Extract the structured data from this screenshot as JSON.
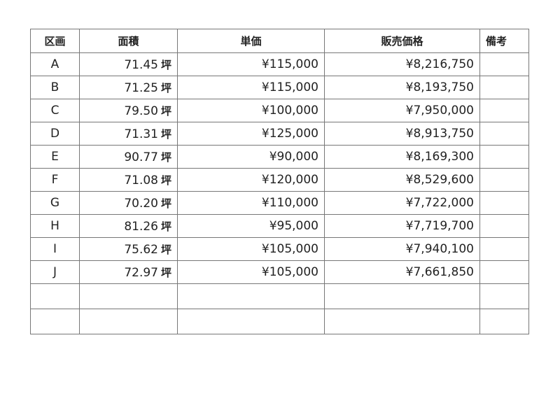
{
  "table": {
    "headers": [
      "区画",
      "面積",
      "単価",
      "販売価格",
      "備考"
    ],
    "area_unit": "坪",
    "rows": [
      {
        "lot": "A",
        "area": "71.45",
        "unit_price": "¥115,000",
        "sale_price": "¥8,216,750",
        "note": ""
      },
      {
        "lot": "B",
        "area": "71.25",
        "unit_price": "¥115,000",
        "sale_price": "¥8,193,750",
        "note": ""
      },
      {
        "lot": "C",
        "area": "79.50",
        "unit_price": "¥100,000",
        "sale_price": "¥7,950,000",
        "note": ""
      },
      {
        "lot": "D",
        "area": "71.31",
        "unit_price": "¥125,000",
        "sale_price": "¥8,913,750",
        "note": ""
      },
      {
        "lot": "E",
        "area": "90.77",
        "unit_price": "¥90,000",
        "sale_price": "¥8,169,300",
        "note": ""
      },
      {
        "lot": "F",
        "area": "71.08",
        "unit_price": "¥120,000",
        "sale_price": "¥8,529,600",
        "note": ""
      },
      {
        "lot": "G",
        "area": "70.20",
        "unit_price": "¥110,000",
        "sale_price": "¥7,722,000",
        "note": ""
      },
      {
        "lot": "H",
        "area": "81.26",
        "unit_price": "¥95,000",
        "sale_price": "¥7,719,700",
        "note": ""
      },
      {
        "lot": "I",
        "area": "75.62",
        "unit_price": "¥105,000",
        "sale_price": "¥7,940,100",
        "note": ""
      },
      {
        "lot": "J",
        "area": "72.97",
        "unit_price": "¥105,000",
        "sale_price": "¥7,661,850",
        "note": ""
      }
    ],
    "empty_rows": 2
  }
}
